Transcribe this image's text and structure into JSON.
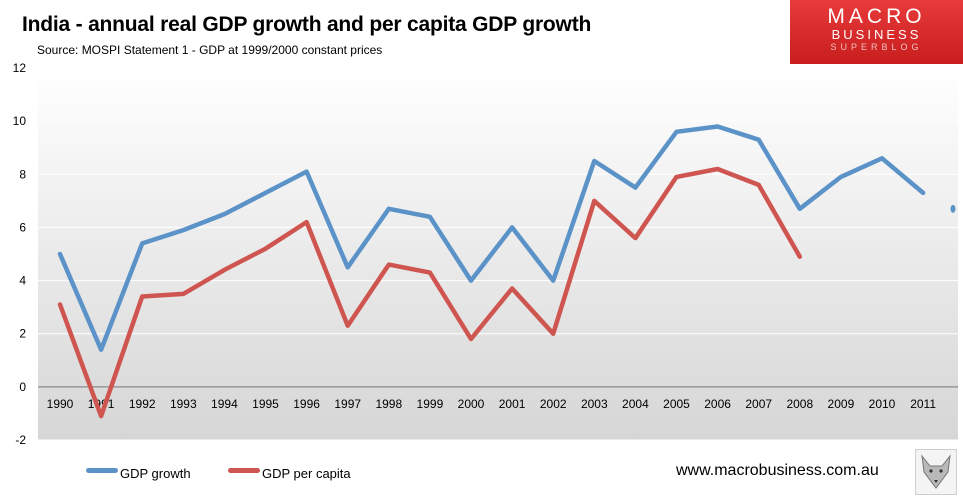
{
  "header": {
    "title": "India -  annual real GDP growth and per capita GDP growth",
    "subtitle": "Source: MOSPI Statement 1 - GDP at 1999/2000 constant prices"
  },
  "logo": {
    "line1": "MACRO",
    "line2": "BUSINESS",
    "line3": "SUPERBLOG"
  },
  "footer": {
    "website": "www.macrobusiness.com.au"
  },
  "colors": {
    "gdp_growth": "#5b93c8",
    "gdp_per_capita": "#cf5650",
    "plot_bg_top": "#ffffff",
    "plot_bg_bottom": "#d6d6d6"
  },
  "chart_data": {
    "type": "line",
    "title": "India -  annual real GDP growth and per capita GDP growth",
    "categories": [
      "1990",
      "1991",
      "1992",
      "1993",
      "1994",
      "1995",
      "1996",
      "1997",
      "1998",
      "1999",
      "2000",
      "2001",
      "2002",
      "2003",
      "2004",
      "2005",
      "2006",
      "2007",
      "2008",
      "2009",
      "2010",
      "2011"
    ],
    "series": [
      {
        "name": "GDP growth",
        "values": [
          5.0,
          1.4,
          5.4,
          5.9,
          6.5,
          7.3,
          8.1,
          4.5,
          6.7,
          6.4,
          4.0,
          6.0,
          4.0,
          8.5,
          7.5,
          9.6,
          9.8,
          9.3,
          6.7,
          7.9,
          8.6,
          7.3
        ]
      },
      {
        "name": "GDP per capita",
        "values": [
          3.1,
          -1.1,
          3.4,
          3.5,
          4.4,
          5.2,
          6.2,
          2.3,
          4.6,
          4.3,
          1.8,
          3.7,
          2.0,
          7.0,
          5.6,
          7.9,
          8.2,
          7.6,
          4.9,
          null,
          null,
          null
        ]
      }
    ],
    "extra_point": {
      "series": "GDP growth",
      "value": 6.7
    },
    "yticks": [
      -2,
      0,
      2,
      4,
      6,
      8,
      10,
      12
    ],
    "ylim": [
      -2,
      12
    ],
    "xlabel": "",
    "ylabel": "",
    "grid": true,
    "legend": "bottom-left"
  }
}
